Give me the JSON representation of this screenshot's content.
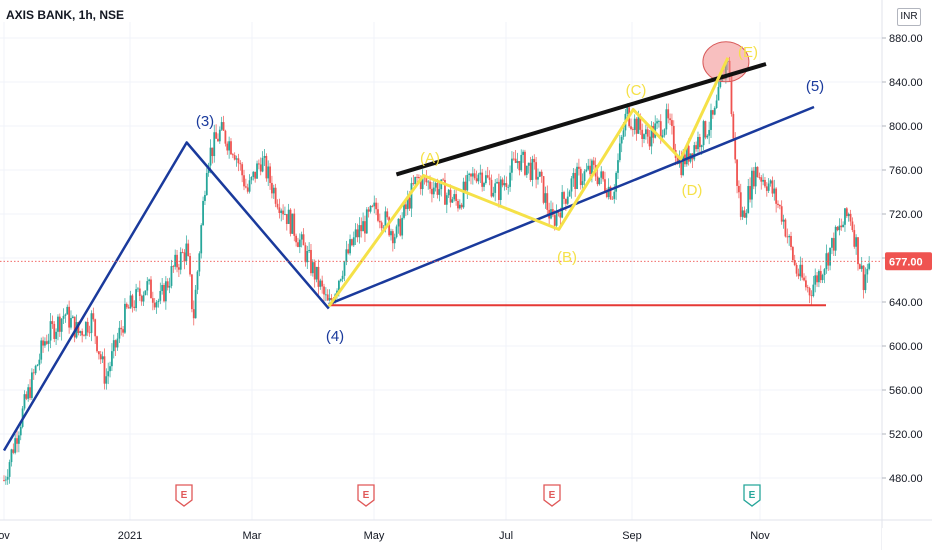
{
  "title": "AXIS BANK, 1h, NSE",
  "currency_button": "INR",
  "colors": {
    "up": "#26a69a",
    "down": "#ef5350",
    "wave_blue": "#1a3a9c",
    "wave_yellow": "#f5e148",
    "trend_black": "#111111",
    "support_red": "#e53935",
    "highlight_circle": "#f28b8b",
    "price_badge": "#ef5350",
    "earnings_red": "#e05858",
    "earnings_green": "#26a69a"
  },
  "chart_data": {
    "type": "candlestick",
    "y_axis": {
      "min": 450,
      "max": 900,
      "tick_labels": [
        "880.00",
        "840.00",
        "800.00",
        "760.00",
        "720.00",
        "680.00",
        "640.00",
        "600.00",
        "560.00",
        "520.00",
        "480.00"
      ],
      "tick_values": [
        880,
        840,
        800,
        760,
        720,
        680,
        640,
        600,
        560,
        520,
        480
      ]
    },
    "x_axis": {
      "tick_labels": [
        "ov",
        "2021",
        "Mar",
        "May",
        "Jul",
        "Sep",
        "Nov"
      ]
    },
    "current_price": {
      "value": 677,
      "label": "677.00"
    },
    "price_path": [
      {
        "t": 0,
        "p": 478
      },
      {
        "t": 6,
        "p": 545
      },
      {
        "t": 12,
        "p": 605
      },
      {
        "t": 18,
        "p": 630
      },
      {
        "t": 22,
        "p": 612
      },
      {
        "t": 26,
        "p": 625
      },
      {
        "t": 30,
        "p": 570
      },
      {
        "t": 36,
        "p": 630
      },
      {
        "t": 42,
        "p": 655
      },
      {
        "t": 46,
        "p": 640
      },
      {
        "t": 50,
        "p": 670
      },
      {
        "t": 54,
        "p": 688
      },
      {
        "t": 56,
        "p": 625
      },
      {
        "t": 60,
        "p": 770
      },
      {
        "t": 64,
        "p": 795
      },
      {
        "t": 68,
        "p": 780
      },
      {
        "t": 72,
        "p": 740
      },
      {
        "t": 76,
        "p": 770
      },
      {
        "t": 80,
        "p": 740
      },
      {
        "t": 86,
        "p": 705
      },
      {
        "t": 92,
        "p": 665
      },
      {
        "t": 96,
        "p": 635
      },
      {
        "t": 100,
        "p": 672
      },
      {
        "t": 104,
        "p": 700
      },
      {
        "t": 110,
        "p": 725
      },
      {
        "t": 116,
        "p": 700
      },
      {
        "t": 122,
        "p": 752
      },
      {
        "t": 128,
        "p": 745
      },
      {
        "t": 134,
        "p": 730
      },
      {
        "t": 140,
        "p": 760
      },
      {
        "t": 146,
        "p": 740
      },
      {
        "t": 152,
        "p": 770
      },
      {
        "t": 158,
        "p": 755
      },
      {
        "t": 162,
        "p": 712
      },
      {
        "t": 168,
        "p": 750
      },
      {
        "t": 174,
        "p": 760
      },
      {
        "t": 180,
        "p": 740
      },
      {
        "t": 184,
        "p": 812
      },
      {
        "t": 190,
        "p": 790
      },
      {
        "t": 196,
        "p": 805
      },
      {
        "t": 200,
        "p": 765
      },
      {
        "t": 204,
        "p": 782
      },
      {
        "t": 210,
        "p": 808
      },
      {
        "t": 214,
        "p": 865
      },
      {
        "t": 216,
        "p": 770
      },
      {
        "t": 218,
        "p": 715
      },
      {
        "t": 222,
        "p": 760
      },
      {
        "t": 226,
        "p": 748
      },
      {
        "t": 230,
        "p": 720
      },
      {
        "t": 234,
        "p": 670
      },
      {
        "t": 238,
        "p": 650
      },
      {
        "t": 242,
        "p": 672
      },
      {
        "t": 246,
        "p": 700
      },
      {
        "t": 250,
        "p": 722
      },
      {
        "t": 254,
        "p": 660
      },
      {
        "t": 256,
        "p": 677
      }
    ],
    "annotations": {
      "wave_labels": [
        {
          "text": "(3)",
          "color": "wave_blue"
        },
        {
          "text": "(4)",
          "color": "wave_blue"
        },
        {
          "text": "(5)",
          "color": "wave_blue"
        },
        {
          "text": "(A)",
          "color": "wave_yellow"
        },
        {
          "text": "(B)",
          "color": "wave_yellow"
        },
        {
          "text": "(C)",
          "color": "wave_yellow"
        },
        {
          "text": "(D)",
          "color": "wave_yellow"
        },
        {
          "text": "(E)",
          "color": "wave_yellow"
        }
      ],
      "earnings_markers": [
        "E",
        "E",
        "E",
        "E"
      ],
      "blue_wave_points": [
        [
          0,
          505
        ],
        [
          54,
          785
        ],
        [
          96,
          634
        ],
        [
          220,
          817
        ]
      ],
      "blue_trendline": [
        [
          96,
          638
        ],
        [
          220,
          817
        ]
      ],
      "black_trendline": [
        [
          116,
          756
        ],
        [
          216,
          858
        ]
      ],
      "support_level": 637,
      "yellow_wave_points": [
        [
          96,
          636
        ],
        [
          124,
          755
        ],
        [
          164,
          706
        ],
        [
          186,
          815
        ],
        [
          200,
          770
        ],
        [
          214,
          862
        ]
      ]
    }
  }
}
